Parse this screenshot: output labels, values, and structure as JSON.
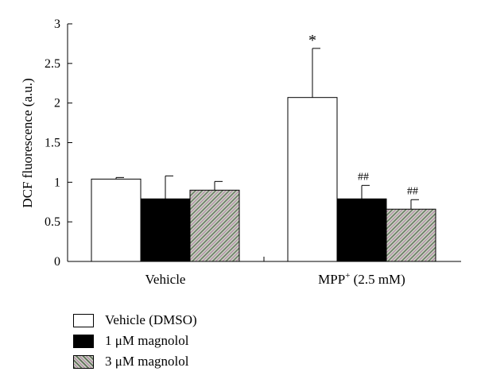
{
  "chart_data": {
    "type": "bar",
    "categories": [
      "Vehicle",
      "MPP"
    ],
    "category_labels": [
      {
        "main": "Vehicle",
        "sup": "",
        "tail": ""
      },
      {
        "main": "MPP",
        "sup": "+",
        "tail": " (2.5 mM)"
      }
    ],
    "ylabel": "DCF fluorescence (a.u.)",
    "xlabel": "",
    "ylim": [
      0,
      3
    ],
    "yticks": [
      0,
      0.5,
      1,
      1.5,
      2,
      2.5,
      3
    ],
    "ytick_labels": [
      "0",
      "0.5",
      "1",
      "1.5",
      "2",
      "2.5",
      "3"
    ],
    "grid": false,
    "legend_position": "bottom-left",
    "series": [
      {
        "name": "Vehicle (DMSO)",
        "values": [
          1.04,
          2.07
        ],
        "errors": [
          0.02,
          0.62
        ],
        "fill": "#ffffff"
      },
      {
        "name": "1 μM magnolol",
        "values": [
          0.79,
          0.79
        ],
        "errors": [
          0.29,
          0.17
        ],
        "fill": "#000000"
      },
      {
        "name": "3 μM magnolol",
        "values": [
          0.9,
          0.66
        ],
        "errors": [
          0.11,
          0.12
        ],
        "fill": "hatch"
      }
    ],
    "annotations": [
      {
        "text": "*",
        "series": 0,
        "category": 1
      },
      {
        "text": "##",
        "series": 1,
        "category": 1
      },
      {
        "text": "##",
        "series": 2,
        "category": 1
      }
    ]
  },
  "legend": {
    "items": [
      {
        "label": "Vehicle (DMSO)"
      },
      {
        "label": "1 μM magnolol"
      },
      {
        "label": "3 μM magnolol"
      }
    ]
  }
}
